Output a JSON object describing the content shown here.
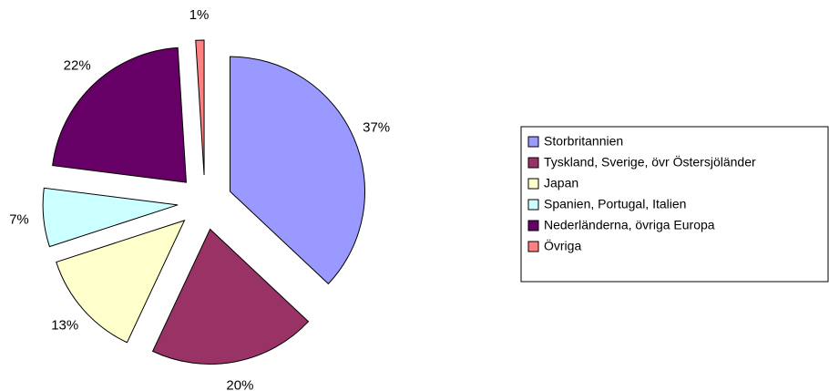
{
  "chart_data": {
    "type": "pie",
    "categories": [
      "Storbritannien",
      "Tyskland, Sverige, övr Östersjöländer",
      "Japan",
      "Spanien, Portugal, Italien",
      "Nederländerna, övriga Europa",
      "Övriga"
    ],
    "values": [
      37,
      20,
      13,
      7,
      22,
      1
    ],
    "value_labels": [
      "37%",
      "20%",
      "13%",
      "7%",
      "22%",
      "1%"
    ],
    "colors": [
      "#9999ff",
      "#993366",
      "#ffffcc",
      "#ccffff",
      "#660066",
      "#ff8080"
    ],
    "legend": "right"
  }
}
